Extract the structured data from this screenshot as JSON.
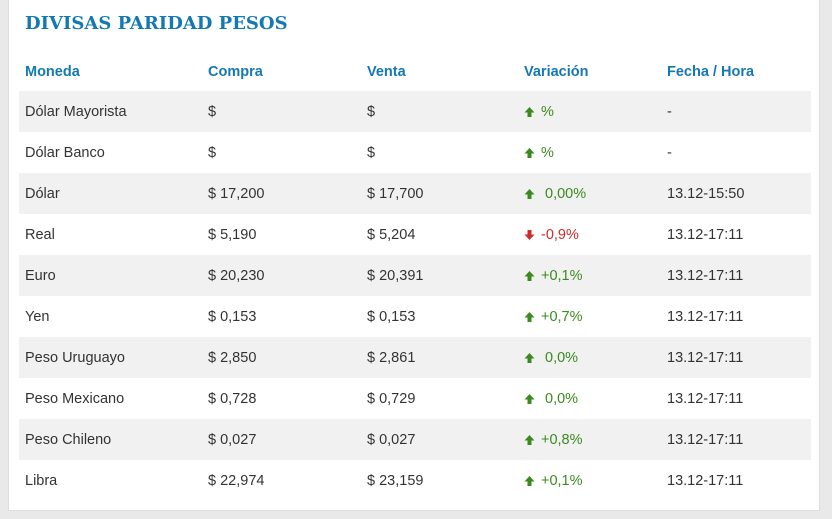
{
  "title": "DIVISAS PARIDAD PESOS",
  "columns": {
    "moneda": "Moneda",
    "compra": "Compra",
    "venta": "Venta",
    "variacion": "Variación",
    "fecha": "Fecha / Hora"
  },
  "colors": {
    "title": "#1478b3",
    "up": "#3b8a1f",
    "down": "#cc2c2c"
  },
  "rows": [
    {
      "moneda": "Dólar Mayorista",
      "compra": "$",
      "venta": "$",
      "direction": "up",
      "variacion": "%",
      "fecha": "-"
    },
    {
      "moneda": "Dólar Banco",
      "compra": "$",
      "venta": "$",
      "direction": "up",
      "variacion": "%",
      "fecha": "-"
    },
    {
      "moneda": "Dólar",
      "compra": "$ 17,200",
      "venta": "$ 17,700",
      "direction": "up",
      "variacion": " 0,00%",
      "fecha": "13.12-15:50"
    },
    {
      "moneda": "Real",
      "compra": "$ 5,190",
      "venta": "$ 5,204",
      "direction": "down",
      "variacion": "-0,9%",
      "fecha": "13.12-17:11"
    },
    {
      "moneda": "Euro",
      "compra": "$ 20,230",
      "venta": "$ 20,391",
      "direction": "up",
      "variacion": "+0,1%",
      "fecha": "13.12-17:11"
    },
    {
      "moneda": "Yen",
      "compra": "$ 0,153",
      "venta": "$ 0,153",
      "direction": "up",
      "variacion": "+0,7%",
      "fecha": "13.12-17:11"
    },
    {
      "moneda": "Peso Uruguayo",
      "compra": "$ 2,850",
      "venta": "$ 2,861",
      "direction": "up",
      "variacion": " 0,0%",
      "fecha": "13.12-17:11"
    },
    {
      "moneda": "Peso Mexicano",
      "compra": "$ 0,728",
      "venta": "$ 0,729",
      "direction": "up",
      "variacion": " 0,0%",
      "fecha": "13.12-17:11"
    },
    {
      "moneda": "Peso Chileno",
      "compra": "$ 0,027",
      "venta": "$ 0,027",
      "direction": "up",
      "variacion": "+0,8%",
      "fecha": "13.12-17:11"
    },
    {
      "moneda": "Libra",
      "compra": "$ 22,974",
      "venta": "$ 23,159",
      "direction": "up",
      "variacion": "+0,1%",
      "fecha": "13.12-17:11"
    }
  ]
}
